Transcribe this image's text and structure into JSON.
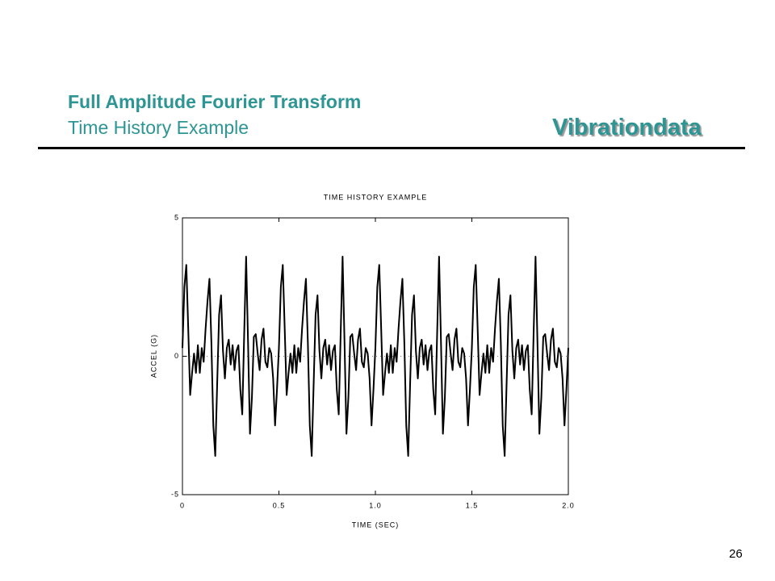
{
  "header": {
    "title": "Full Amplitude Fourier Transform",
    "subtitle": "Time History Example",
    "brand": "Vibrationdata"
  },
  "page_number": "26",
  "chart_data": {
    "type": "line",
    "title": "TIME HISTORY EXAMPLE",
    "x_label": "TIME (SEC)",
    "y_label": "ACCEL (G)",
    "color": "#000000",
    "xlim": [
      0,
      2
    ],
    "ylim": [
      -5,
      5
    ],
    "xticks": [
      0,
      0.5,
      {
        "value": 1,
        "label": "1.0"
      },
      1.5,
      {
        "value": 2,
        "label": "2.0"
      }
    ],
    "yticks": [
      -5,
      0,
      5
    ],
    "x": [
      0,
      0.01,
      0.02,
      0.03,
      0.04,
      0.05,
      0.06,
      0.07,
      0.08,
      0.09,
      0.1,
      0.11,
      0.12,
      0.13,
      0.14,
      0.15,
      0.16,
      0.17,
      0.18,
      0.19,
      0.2,
      0.21,
      0.22,
      0.23,
      0.24,
      0.25,
      0.26,
      0.27,
      0.28,
      0.29,
      0.3,
      0.31,
      0.32,
      0.33,
      0.34,
      0.35,
      0.36,
      0.37,
      0.38,
      0.39,
      0.4,
      0.41,
      0.42,
      0.43,
      0.44,
      0.45,
      0.46,
      0.47,
      0.48,
      0.49,
      0.5,
      0.51,
      0.52,
      0.53,
      0.54,
      0.55,
      0.56,
      0.57,
      0.58,
      0.59,
      0.6,
      0.61,
      0.62,
      0.63,
      0.64,
      0.65,
      0.66,
      0.67,
      0.68,
      0.69,
      0.7,
      0.71,
      0.72,
      0.73,
      0.74,
      0.75,
      0.76,
      0.77,
      0.78,
      0.79,
      0.8,
      0.81,
      0.82,
      0.83,
      0.84,
      0.85,
      0.86,
      0.87,
      0.88,
      0.89,
      0.9,
      0.91,
      0.92,
      0.93,
      0.94,
      0.95,
      0.96,
      0.97,
      0.98,
      0.99,
      1,
      1.01,
      1.02,
      1.03,
      1.04,
      1.05,
      1.06,
      1.07,
      1.08,
      1.09,
      1.1,
      1.11,
      1.12,
      1.13,
      1.14,
      1.15,
      1.16,
      1.17,
      1.18,
      1.19,
      1.2,
      1.21,
      1.22,
      1.23,
      1.24,
      1.25,
      1.26,
      1.27,
      1.28,
      1.29,
      1.3,
      1.31,
      1.32,
      1.33,
      1.34,
      1.35,
      1.36,
      1.37,
      1.38,
      1.39,
      1.4,
      1.41,
      1.42,
      1.43,
      1.44,
      1.45,
      1.46,
      1.47,
      1.48,
      1.49,
      1.5,
      1.51,
      1.52,
      1.53,
      1.54,
      1.55,
      1.56,
      1.57,
      1.58,
      1.59,
      1.6,
      1.61,
      1.62,
      1.63,
      1.64,
      1.65,
      1.66,
      1.67,
      1.68,
      1.69,
      1.7,
      1.71,
      1.72,
      1.73,
      1.74,
      1.75,
      1.76,
      1.77,
      1.78,
      1.79,
      1.8,
      1.81,
      1.82,
      1.83,
      1.84,
      1.85,
      1.86,
      1.87,
      1.88,
      1.89,
      1.9,
      1.91,
      1.92,
      1.93,
      1.94,
      1.95,
      1.96,
      1.97,
      1.98,
      1.99,
      2
    ],
    "values": [
      0.3,
      2.5,
      3.3,
      1.0,
      -1.4,
      -0.6,
      0.1,
      -0.6,
      0.4,
      -0.6,
      0.3,
      -0.2,
      1.0,
      2.0,
      2.8,
      0.5,
      -2.5,
      -3.6,
      -1.0,
      1.5,
      2.2,
      0.2,
      -0.8,
      0.3,
      0.6,
      -0.3,
      0.4,
      -0.5,
      0.2,
      0.4,
      -1.2,
      -2.1,
      0.8,
      3.6,
      0.5,
      -2.8,
      -1.5,
      0.7,
      0.8,
      0.1,
      -0.5,
      0.6,
      1.0,
      -0.2,
      -0.4,
      0.3,
      0.1,
      -0.8,
      -2.5,
      -1.2,
      0.3,
      2.5,
      3.3,
      1.0,
      -1.4,
      -0.6,
      0.1,
      -0.6,
      0.4,
      -0.6,
      0.3,
      -0.2,
      1.0,
      2.0,
      2.8,
      0.5,
      -2.5,
      -3.6,
      -1.0,
      1.5,
      2.2,
      0.2,
      -0.8,
      0.3,
      0.6,
      -0.3,
      0.4,
      -0.5,
      0.2,
      0.4,
      -1.2,
      -2.1,
      0.8,
      3.6,
      0.5,
      -2.8,
      -1.5,
      0.7,
      0.8,
      0.1,
      -0.5,
      0.6,
      1.0,
      -0.2,
      -0.4,
      0.3,
      0.1,
      -0.8,
      -2.5,
      -1.2,
      0.3,
      2.5,
      3.3,
      1.0,
      -1.4,
      -0.6,
      0.1,
      -0.6,
      0.4,
      -0.6,
      0.3,
      -0.2,
      1.0,
      2.0,
      2.8,
      0.5,
      -2.5,
      -3.6,
      -1.0,
      1.5,
      2.2,
      0.2,
      -0.8,
      0.3,
      0.6,
      -0.3,
      0.4,
      -0.5,
      0.2,
      0.4,
      -1.2,
      -2.1,
      0.8,
      3.6,
      0.5,
      -2.8,
      -1.5,
      0.7,
      0.8,
      0.1,
      -0.5,
      0.6,
      1.0,
      -0.2,
      -0.4,
      0.3,
      0.1,
      -0.8,
      -2.5,
      -1.2,
      0.3,
      2.5,
      3.3,
      1.0,
      -1.4,
      -0.6,
      0.1,
      -0.6,
      0.4,
      -0.6,
      0.3,
      -0.2,
      1.0,
      2.0,
      2.8,
      0.5,
      -2.5,
      -3.6,
      -1.0,
      1.5,
      2.2,
      0.2,
      -0.8,
      0.3,
      0.6,
      -0.3,
      0.4,
      -0.5,
      0.2,
      0.4,
      -1.2,
      -2.1,
      0.8,
      3.6,
      0.5,
      -2.8,
      -1.5,
      0.7,
      0.8,
      0.1,
      -0.5,
      0.6,
      1.0,
      -0.2,
      -0.4,
      0.3,
      0.1,
      -0.8,
      -2.5,
      -1.2,
      0.3
    ]
  }
}
